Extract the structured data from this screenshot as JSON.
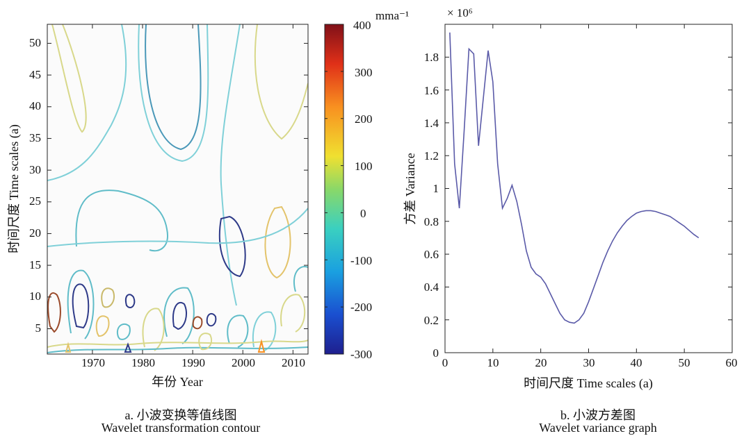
{
  "colors": {
    "contour_levels": [
      "#f0f0f0",
      "#7fd0d8",
      "#5fbcc8",
      "#d8d88a",
      "#c9b96a",
      "#e3c36a",
      "#2e3a88",
      "#9a4a2a"
    ],
    "variance_line": "#5a5aa8",
    "colorbar_stops": [
      "#1e1f8e",
      "#1a4fd0",
      "#1aa0e0",
      "#3ad0c0",
      "#8ad868",
      "#f0e030",
      "#f89020",
      "#e03018",
      "#801018"
    ]
  },
  "chart_data": [
    {
      "type": "heatmap",
      "title": "",
      "xlabel": "年份 Year",
      "ylabel": "时间尺度 Time scales (a)",
      "xlim": [
        1961,
        2013
      ],
      "ylim": [
        1,
        53
      ],
      "x_ticks": [
        "1970",
        "1980",
        "1990",
        "2000",
        "2010"
      ],
      "y_ticks": [
        "5",
        "10",
        "15",
        "20",
        "25",
        "30",
        "35",
        "40",
        "45",
        "50"
      ],
      "colorbar": {
        "label": "mma⁻¹",
        "range": [
          -300,
          400
        ],
        "ticks": [
          "-300",
          "-200",
          "-100",
          "0",
          "100",
          "200",
          "300",
          "400"
        ]
      },
      "caption": {
        "zh": "a. 小波变换等值线图",
        "en": "Wavelet transformation contour"
      }
    },
    {
      "type": "line",
      "title": "",
      "xlabel": "时间尺度 Time scales (a)",
      "ylabel": "方差 Variance",
      "multiplier_label": "× 10⁶",
      "xlim": [
        0,
        60
      ],
      "ylim": [
        0,
        2.0
      ],
      "x_ticks": [
        "0",
        "10",
        "20",
        "30",
        "40",
        "50",
        "60"
      ],
      "y_ticks": [
        "0",
        "0.2",
        "0.4",
        "0.6",
        "0.8",
        "1",
        "1.2",
        "1.4",
        "1.6",
        "1.8"
      ],
      "series": [
        {
          "x": [
            1,
            2,
            3,
            4,
            5,
            6,
            7,
            8,
            9,
            10,
            11,
            12,
            13,
            14,
            15,
            16,
            17,
            18,
            19,
            20,
            21,
            22,
            23,
            24,
            25,
            26,
            27,
            28,
            29,
            30,
            31,
            32,
            33,
            34,
            35,
            36,
            37,
            38,
            39,
            40,
            41,
            42,
            43,
            44,
            45,
            46,
            47,
            48,
            49,
            50,
            51,
            52,
            53
          ],
          "values": [
            1.95,
            1.15,
            0.88,
            1.35,
            1.85,
            1.82,
            1.26,
            1.55,
            1.84,
            1.65,
            1.15,
            0.88,
            0.94,
            1.02,
            0.92,
            0.78,
            0.62,
            0.52,
            0.48,
            0.46,
            0.42,
            0.36,
            0.3,
            0.24,
            0.2,
            0.185,
            0.18,
            0.2,
            0.24,
            0.31,
            0.39,
            0.47,
            0.55,
            0.62,
            0.68,
            0.73,
            0.77,
            0.805,
            0.83,
            0.85,
            0.86,
            0.865,
            0.865,
            0.86,
            0.85,
            0.84,
            0.83,
            0.81,
            0.79,
            0.77,
            0.745,
            0.72,
            0.7
          ]
        }
      ],
      "caption": {
        "zh": "b. 小波方差图",
        "en": "Wavelet variance graph"
      }
    }
  ]
}
